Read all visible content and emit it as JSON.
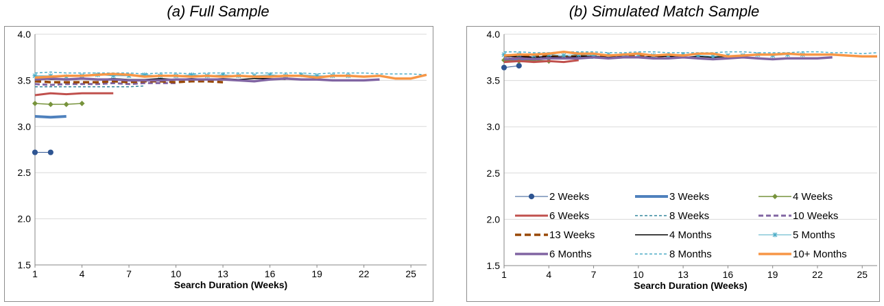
{
  "panels": [
    {
      "title": "(a) Full Sample"
    },
    {
      "title": "(b) Simulated Match Sample"
    }
  ],
  "chart_data": [
    {
      "type": "line",
      "title": "(a) Full Sample",
      "xlabel": "Search Duration (Weeks)",
      "ylabel": "",
      "xlim": [
        1,
        26
      ],
      "ylim": [
        1.5,
        4.0
      ],
      "x_ticks": [
        1,
        4,
        7,
        10,
        13,
        16,
        19,
        22,
        25
      ],
      "y_ticks": [
        "1.5",
        "2.0",
        "2.5",
        "3.0",
        "3.5",
        "4.0"
      ],
      "grid": "horizontal",
      "legend": "none",
      "series": [
        {
          "name": "2 Weeks",
          "x": [
            1,
            2
          ],
          "values": [
            2.72,
            2.72
          ]
        },
        {
          "name": "3 Weeks",
          "x": [
            1,
            2,
            3
          ],
          "values": [
            3.11,
            3.1,
            3.11
          ]
        },
        {
          "name": "4 Weeks",
          "x": [
            1,
            2,
            3,
            4
          ],
          "values": [
            3.25,
            3.24,
            3.24,
            3.25
          ]
        },
        {
          "name": "6 Weeks",
          "x": [
            1,
            2,
            3,
            4,
            5,
            6
          ],
          "values": [
            3.34,
            3.36,
            3.35,
            3.36,
            3.36,
            3.36
          ]
        },
        {
          "name": "8 Weeks",
          "x": [
            1,
            2,
            3,
            4,
            5,
            6,
            7,
            8
          ],
          "values": [
            3.43,
            3.43,
            3.43,
            3.43,
            3.43,
            3.43,
            3.43,
            3.44
          ]
        },
        {
          "name": "10 Weeks",
          "x": [
            1,
            2,
            3,
            4,
            5,
            6,
            7,
            8,
            9,
            10
          ],
          "values": [
            3.46,
            3.45,
            3.46,
            3.46,
            3.46,
            3.47,
            3.46,
            3.47,
            3.47,
            3.47
          ]
        },
        {
          "name": "13 Weeks",
          "x": [
            1,
            2,
            3,
            4,
            5,
            6,
            7,
            8,
            9,
            10,
            11,
            12,
            13
          ],
          "values": [
            3.49,
            3.48,
            3.48,
            3.48,
            3.48,
            3.49,
            3.48,
            3.49,
            3.49,
            3.48,
            3.49,
            3.49,
            3.48
          ]
        },
        {
          "name": "4 Months",
          "x": [
            1,
            2,
            3,
            4,
            5,
            6,
            7,
            8,
            9,
            10,
            11,
            12,
            13,
            14,
            15,
            16,
            17
          ],
          "values": [
            3.52,
            3.51,
            3.51,
            3.52,
            3.51,
            3.52,
            3.51,
            3.51,
            3.52,
            3.51,
            3.52,
            3.51,
            3.52,
            3.51,
            3.52,
            3.52,
            3.51
          ]
        },
        {
          "name": "5 Months",
          "x": [
            1,
            2,
            3,
            4,
            5,
            6,
            7,
            8,
            9,
            10,
            11,
            12,
            13,
            14,
            15,
            16,
            17,
            18,
            19,
            20,
            21
          ],
          "values": [
            3.55,
            3.55,
            3.54,
            3.55,
            3.56,
            3.55,
            3.55,
            3.56,
            3.55,
            3.55,
            3.56,
            3.55,
            3.56,
            3.55,
            3.55,
            3.56,
            3.55,
            3.56,
            3.55,
            3.55,
            3.55
          ]
        },
        {
          "name": "6 Months",
          "x": [
            1,
            2,
            3,
            4,
            5,
            6,
            7,
            8,
            9,
            10,
            11,
            12,
            13,
            14,
            15,
            16,
            17,
            18,
            19,
            20,
            21,
            22,
            23
          ],
          "values": [
            3.51,
            3.52,
            3.51,
            3.52,
            3.51,
            3.51,
            3.5,
            3.5,
            3.5,
            3.51,
            3.51,
            3.51,
            3.51,
            3.5,
            3.49,
            3.51,
            3.52,
            3.51,
            3.51,
            3.5,
            3.5,
            3.5,
            3.51
          ]
        },
        {
          "name": "8 Months",
          "x": [
            1,
            2,
            3,
            4,
            5,
            6,
            7,
            8,
            9,
            10,
            11,
            12,
            13,
            14,
            15,
            16,
            17,
            18,
            19,
            20,
            21,
            22,
            23,
            24,
            25,
            26
          ],
          "values": [
            3.58,
            3.59,
            3.58,
            3.58,
            3.58,
            3.58,
            3.58,
            3.57,
            3.58,
            3.58,
            3.57,
            3.58,
            3.58,
            3.58,
            3.58,
            3.58,
            3.58,
            3.58,
            3.57,
            3.58,
            3.58,
            3.58,
            3.57,
            3.57,
            3.57,
            3.56
          ]
        },
        {
          "name": "10+ Months",
          "x": [
            1,
            2,
            3,
            4,
            5,
            6,
            7,
            8,
            9,
            10,
            11,
            12,
            13,
            14,
            15,
            16,
            17,
            18,
            19,
            20,
            21,
            22,
            23,
            24,
            25,
            26
          ],
          "values": [
            3.53,
            3.54,
            3.55,
            3.55,
            3.56,
            3.57,
            3.56,
            3.54,
            3.55,
            3.55,
            3.54,
            3.55,
            3.54,
            3.55,
            3.54,
            3.54,
            3.55,
            3.55,
            3.53,
            3.55,
            3.55,
            3.54,
            3.55,
            3.52,
            3.52,
            3.56
          ]
        }
      ]
    },
    {
      "type": "line",
      "title": "(b) Simulated Match Sample",
      "xlabel": "Search Duration (Weeks)",
      "ylabel": "",
      "xlim": [
        1,
        26
      ],
      "ylim": [
        1.5,
        4.0
      ],
      "x_ticks": [
        1,
        4,
        7,
        10,
        13,
        16,
        19,
        22,
        25
      ],
      "y_ticks": [
        "1.5",
        "2.0",
        "2.5",
        "3.0",
        "3.5",
        "4.0"
      ],
      "grid": "horizontal",
      "legend": "inside-bottom",
      "series": [
        {
          "name": "2 Weeks",
          "x": [
            1,
            2
          ],
          "values": [
            3.64,
            3.66
          ]
        },
        {
          "name": "3 Weeks",
          "x": [
            1,
            2,
            3
          ],
          "values": [
            3.72,
            3.72,
            3.72
          ]
        },
        {
          "name": "4 Weeks",
          "x": [
            1,
            2,
            3,
            4
          ],
          "values": [
            3.72,
            3.71,
            3.72,
            3.71
          ]
        },
        {
          "name": "6 Weeks",
          "x": [
            1,
            2,
            3,
            4,
            5,
            6
          ],
          "values": [
            3.7,
            3.71,
            3.7,
            3.71,
            3.7,
            3.72
          ]
        },
        {
          "name": "8 Weeks",
          "x": [
            1,
            2,
            3,
            4,
            5,
            6,
            7,
            8
          ],
          "values": [
            3.74,
            3.75,
            3.74,
            3.75,
            3.74,
            3.75,
            3.74,
            3.75
          ]
        },
        {
          "name": "10 Weeks",
          "x": [
            1,
            2,
            3,
            4,
            5,
            6,
            7,
            8,
            9,
            10
          ],
          "values": [
            3.76,
            3.76,
            3.75,
            3.76,
            3.75,
            3.76,
            3.75,
            3.76,
            3.76,
            3.75
          ]
        },
        {
          "name": "13 Weeks",
          "x": [
            1,
            2,
            3,
            4,
            5,
            6,
            7,
            8,
            9,
            10,
            11,
            12,
            13
          ],
          "values": [
            3.77,
            3.76,
            3.76,
            3.77,
            3.76,
            3.77,
            3.76,
            3.77,
            3.76,
            3.77,
            3.76,
            3.77,
            3.76
          ]
        },
        {
          "name": "4 Months",
          "x": [
            1,
            2,
            3,
            4,
            5,
            6,
            7,
            8,
            9,
            10,
            11,
            12,
            13,
            14,
            15,
            16,
            17
          ],
          "values": [
            3.76,
            3.76,
            3.75,
            3.76,
            3.75,
            3.76,
            3.76,
            3.75,
            3.76,
            3.75,
            3.76,
            3.76,
            3.75,
            3.76,
            3.75,
            3.76,
            3.76
          ]
        },
        {
          "name": "5 Months",
          "x": [
            1,
            2,
            3,
            4,
            5,
            6,
            7,
            8,
            9,
            10,
            11,
            12,
            13,
            14,
            15,
            16,
            17,
            18,
            19,
            20,
            21
          ],
          "values": [
            3.78,
            3.78,
            3.77,
            3.78,
            3.77,
            3.78,
            3.77,
            3.78,
            3.77,
            3.78,
            3.77,
            3.77,
            3.78,
            3.77,
            3.76,
            3.77,
            3.77,
            3.78,
            3.77,
            3.78,
            3.78
          ]
        },
        {
          "name": "6 Months",
          "x": [
            1,
            2,
            3,
            4,
            5,
            6,
            7,
            8,
            9,
            10,
            11,
            12,
            13,
            14,
            15,
            16,
            17,
            18,
            19,
            20,
            21,
            22,
            23
          ],
          "values": [
            3.73,
            3.74,
            3.73,
            3.74,
            3.74,
            3.74,
            3.75,
            3.74,
            3.75,
            3.75,
            3.74,
            3.74,
            3.75,
            3.74,
            3.73,
            3.74,
            3.75,
            3.74,
            3.73,
            3.74,
            3.74,
            3.74,
            3.75
          ]
        },
        {
          "name": "8 Months",
          "x": [
            1,
            2,
            3,
            4,
            5,
            6,
            7,
            8,
            9,
            10,
            11,
            12,
            13,
            14,
            15,
            16,
            17,
            18,
            19,
            20,
            21,
            22,
            23,
            24,
            25,
            26
          ],
          "values": [
            3.81,
            3.81,
            3.8,
            3.8,
            3.81,
            3.81,
            3.81,
            3.8,
            3.8,
            3.81,
            3.81,
            3.8,
            3.8,
            3.8,
            3.8,
            3.81,
            3.81,
            3.8,
            3.8,
            3.8,
            3.81,
            3.81,
            3.8,
            3.8,
            3.79,
            3.8
          ]
        },
        {
          "name": "10+ Months",
          "x": [
            1,
            2,
            3,
            4,
            5,
            6,
            7,
            8,
            9,
            10,
            11,
            12,
            13,
            14,
            15,
            16,
            17,
            18,
            19,
            20,
            21,
            22,
            23,
            24,
            25,
            26
          ],
          "values": [
            3.77,
            3.78,
            3.78,
            3.79,
            3.81,
            3.79,
            3.79,
            3.77,
            3.78,
            3.79,
            3.77,
            3.78,
            3.77,
            3.79,
            3.79,
            3.76,
            3.77,
            3.78,
            3.78,
            3.79,
            3.78,
            3.78,
            3.78,
            3.77,
            3.76,
            3.76
          ]
        }
      ]
    }
  ],
  "series_styles": {
    "2 Weeks": {
      "color": "#2E5592",
      "width": 1,
      "dash": "",
      "marker": "circle"
    },
    "3 Weeks": {
      "color": "#4F81BD",
      "width": 4,
      "dash": "",
      "marker": "none"
    },
    "4 Weeks": {
      "color": "#77933C",
      "width": 1.5,
      "dash": "",
      "marker": "diamond"
    },
    "6 Weeks": {
      "color": "#C0504D",
      "width": 3,
      "dash": "",
      "marker": "none"
    },
    "8 Weeks": {
      "color": "#31859C",
      "width": 1.5,
      "dash": "4,3",
      "marker": "none"
    },
    "10 Weeks": {
      "color": "#8064A2",
      "width": 3,
      "dash": "7,4",
      "marker": "none"
    },
    "13 Weeks": {
      "color": "#984807",
      "width": 3.5,
      "dash": "9,5",
      "marker": "none"
    },
    "4 Months": {
      "color": "#000000",
      "width": 1.5,
      "dash": "",
      "marker": "none"
    },
    "5 Months": {
      "color": "#4BACC6",
      "width": 1,
      "dash": "",
      "marker": "star"
    },
    "6 Months": {
      "color": "#8064A2",
      "width": 3.5,
      "dash": "",
      "marker": "none"
    },
    "8 Months": {
      "color": "#4BACC6",
      "width": 1.5,
      "dash": "4,3",
      "marker": "none"
    },
    "10+ Months": {
      "color": "#F79646",
      "width": 3.5,
      "dash": "",
      "marker": "none"
    }
  }
}
